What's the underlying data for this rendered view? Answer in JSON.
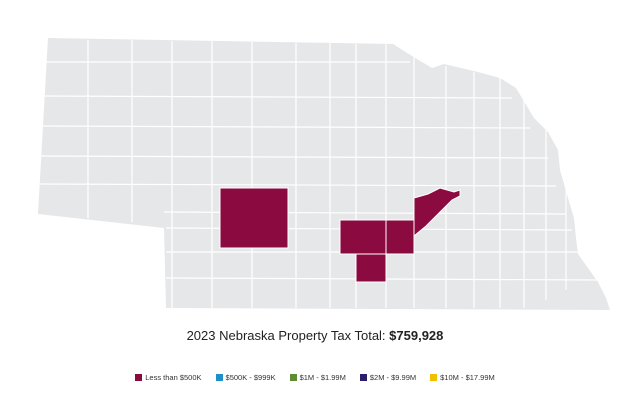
{
  "colors": {
    "state_fill": "#e6e7e9",
    "county_border": "#ffffff",
    "highlight": "#8b0a3f"
  },
  "caption": {
    "prefix": "2023 Nebraska Property Tax Total:",
    "total": "$759,928"
  },
  "legend": [
    {
      "label": "Less than $500K",
      "color": "#8b0a3f"
    },
    {
      "label": "$500K - $999K",
      "color": "#1f8fc7"
    },
    {
      "label": "$1M - $1.99M",
      "color": "#5f8a36"
    },
    {
      "label": "$2M - $9.99M",
      "color": "#2b1f6b"
    },
    {
      "label": "$10M - $17.99M",
      "color": "#f0c000"
    }
  ],
  "highlighted_counties": 5
}
